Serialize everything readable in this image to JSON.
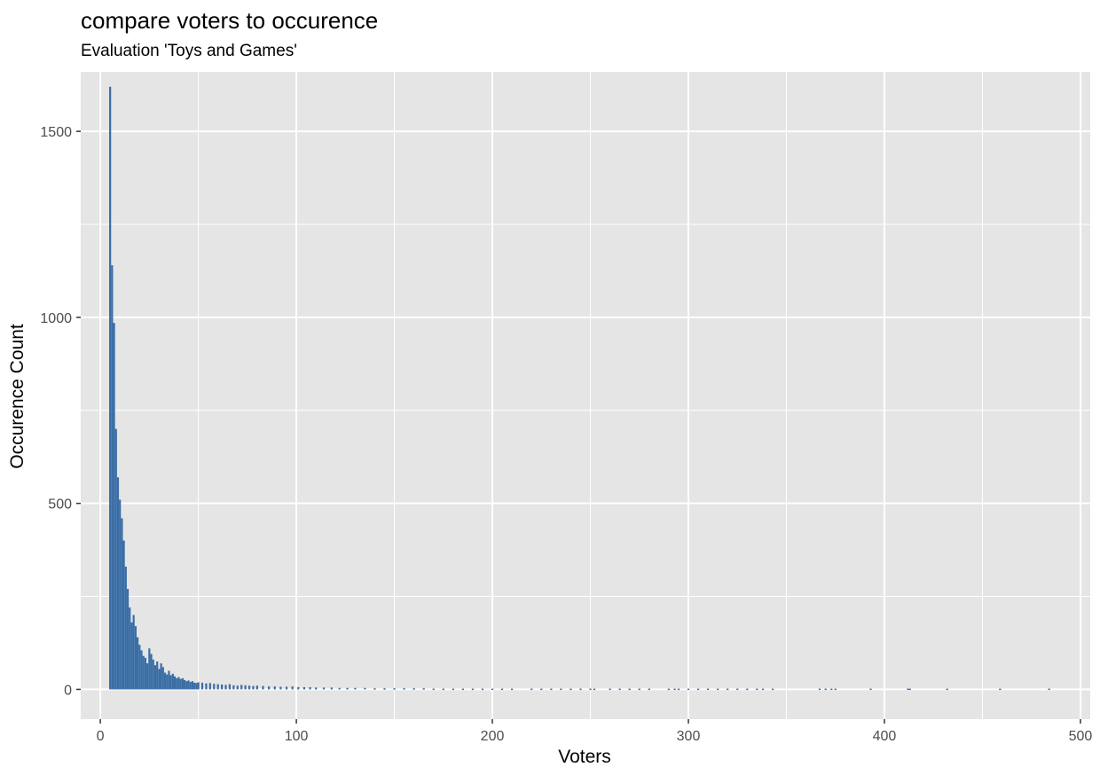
{
  "chart_data": {
    "type": "bar",
    "title": "compare voters to occurence",
    "subtitle": "Evaluation 'Toys and Games'",
    "xlabel": "Voters",
    "ylabel": "Occurence Count",
    "xlim": [
      -10,
      505
    ],
    "ylim": [
      -80,
      1660
    ],
    "x_ticks": [
      0,
      100,
      200,
      300,
      400,
      500
    ],
    "y_ticks": [
      0,
      500,
      1000,
      1500
    ],
    "grid": true,
    "legend": "none",
    "bar_color": "#3a6ea5",
    "panel_color": "#e5e5e5",
    "grid_color": "#ffffff",
    "x": [
      5,
      6,
      7,
      8,
      9,
      10,
      11,
      12,
      13,
      14,
      15,
      16,
      17,
      18,
      19,
      20,
      21,
      22,
      23,
      24,
      25,
      26,
      27,
      28,
      29,
      30,
      31,
      32,
      33,
      34,
      35,
      36,
      37,
      38,
      39,
      40,
      41,
      42,
      43,
      44,
      45,
      46,
      47,
      48,
      49,
      50,
      52,
      54,
      56,
      58,
      60,
      62,
      64,
      66,
      68,
      70,
      72,
      74,
      76,
      78,
      80,
      83,
      86,
      89,
      92,
      95,
      98,
      101,
      104,
      107,
      110,
      114,
      118,
      122,
      126,
      130,
      135,
      140,
      145,
      150,
      155,
      160,
      165,
      170,
      175,
      180,
      185,
      190,
      195,
      200,
      205,
      210,
      220,
      225,
      230,
      235,
      240,
      245,
      250,
      252,
      260,
      265,
      270,
      275,
      280,
      290,
      293,
      295,
      300,
      305,
      310,
      315,
      320,
      325,
      330,
      335,
      338,
      343,
      367,
      370,
      373,
      375,
      393,
      412,
      413,
      432,
      459,
      484
    ],
    "values": [
      1620,
      1140,
      985,
      700,
      570,
      510,
      460,
      400,
      330,
      270,
      220,
      180,
      200,
      170,
      140,
      120,
      105,
      90,
      85,
      70,
      110,
      95,
      80,
      65,
      75,
      55,
      70,
      60,
      45,
      40,
      50,
      38,
      42,
      35,
      30,
      33,
      28,
      30,
      25,
      22,
      24,
      20,
      22,
      18,
      17,
      19,
      18,
      16,
      17,
      15,
      14,
      13,
      12,
      14,
      11,
      10,
      12,
      11,
      10,
      9,
      10,
      9,
      8,
      8,
      7,
      7,
      8,
      6,
      6,
      6,
      5,
      5,
      5,
      4,
      4,
      4,
      4,
      3,
      3,
      3,
      3,
      3,
      3,
      2,
      2,
      2,
      2,
      2,
      2,
      2,
      2,
      2,
      2,
      2,
      2,
      2,
      2,
      2,
      2,
      2,
      2,
      2,
      2,
      2,
      2,
      2,
      2,
      2,
      2,
      2,
      2,
      2,
      2,
      2,
      2,
      2,
      2,
      2,
      2,
      2,
      2,
      2,
      2,
      2,
      2,
      2,
      2,
      2
    ]
  }
}
